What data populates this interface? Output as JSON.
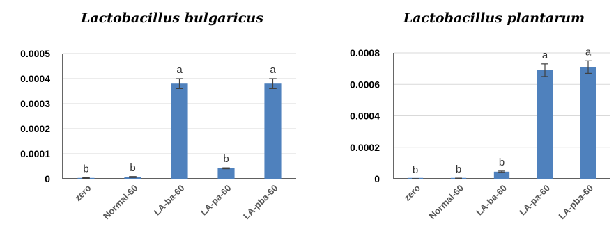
{
  "chart_data": [
    {
      "type": "bar",
      "title": "Lactobacillus bulgaricus",
      "categories": [
        "zero",
        "Normal-60",
        "LA-ba-60",
        "LA-pa-60",
        "LA-pba-60"
      ],
      "values": [
        3e-06,
        7e-06,
        0.00038,
        4.2e-05,
        0.00038
      ],
      "errors": [
        1.5e-06,
        2e-06,
        2e-05,
        2e-06,
        2e-05
      ],
      "labels": [
        "b",
        "b",
        "a",
        "b",
        "a"
      ],
      "ylim": [
        0,
        0.0005
      ],
      "yticks": [
        "0",
        "0.0001",
        "0.0002",
        "0.0003",
        "0.0004",
        "0.0005"
      ],
      "grid": true,
      "bar_color": "#4f81bd"
    },
    {
      "type": "bar",
      "title": "Lactobacillus plantarum",
      "categories": [
        "zero",
        "Normal-60",
        "LA-ba-60",
        "LA-pa-60",
        "LA-pba-60"
      ],
      "values": [
        5e-07,
        3e-06,
        4.5e-05,
        0.00069,
        0.00071
      ],
      "errors": [
        5e-07,
        1e-06,
        4e-06,
        4e-05,
        4e-05
      ],
      "labels": [
        "b",
        "b",
        "b",
        "a",
        "a"
      ],
      "ylim": [
        0,
        0.0008
      ],
      "yticks": [
        "0",
        "0.0002",
        "0.0004",
        "0.0006",
        "0.0008"
      ],
      "grid": true,
      "bar_color": "#4f81bd"
    }
  ]
}
